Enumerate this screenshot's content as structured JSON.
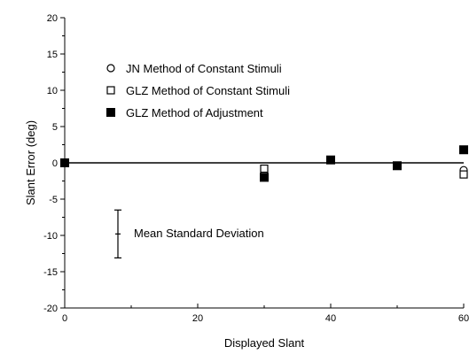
{
  "chart_data": {
    "type": "scatter",
    "title": "",
    "xlabel": "Displayed Slant",
    "ylabel": "Slant Error (deg)",
    "xlim": [
      0,
      60
    ],
    "ylim": [
      -20,
      20
    ],
    "x_ticks": [
      0,
      20,
      40,
      60
    ],
    "y_ticks": [
      20,
      15,
      10,
      5,
      0,
      -5,
      -10,
      -15,
      -20
    ],
    "x_minor_ticks": [
      10,
      30,
      50
    ],
    "grid": false,
    "legend_position": "top-left",
    "reference_line": {
      "y": 0
    },
    "series": [
      {
        "name": "JN Method of Constant Stimuli",
        "marker": "open-circle",
        "x": [
          0,
          30,
          40,
          50,
          60
        ],
        "y": [
          0,
          -1.4,
          0.4,
          -0.4,
          -1.0
        ]
      },
      {
        "name": "GLZ Method of Constant Stimuli",
        "marker": "open-square",
        "x": [
          0,
          30,
          40,
          50,
          60
        ],
        "y": [
          0,
          -0.8,
          0.4,
          -0.4,
          -1.6
        ]
      },
      {
        "name": "GLZ Method of Adjustment",
        "marker": "filled-square",
        "x": [
          0,
          30,
          40,
          50,
          60
        ],
        "y": [
          0,
          -2.0,
          0.4,
          -0.4,
          1.8
        ]
      }
    ],
    "error_bar": {
      "label": "Mean Standard Deviation",
      "x": 8,
      "center": -9.8,
      "low": -13.1,
      "high": -6.5
    }
  }
}
